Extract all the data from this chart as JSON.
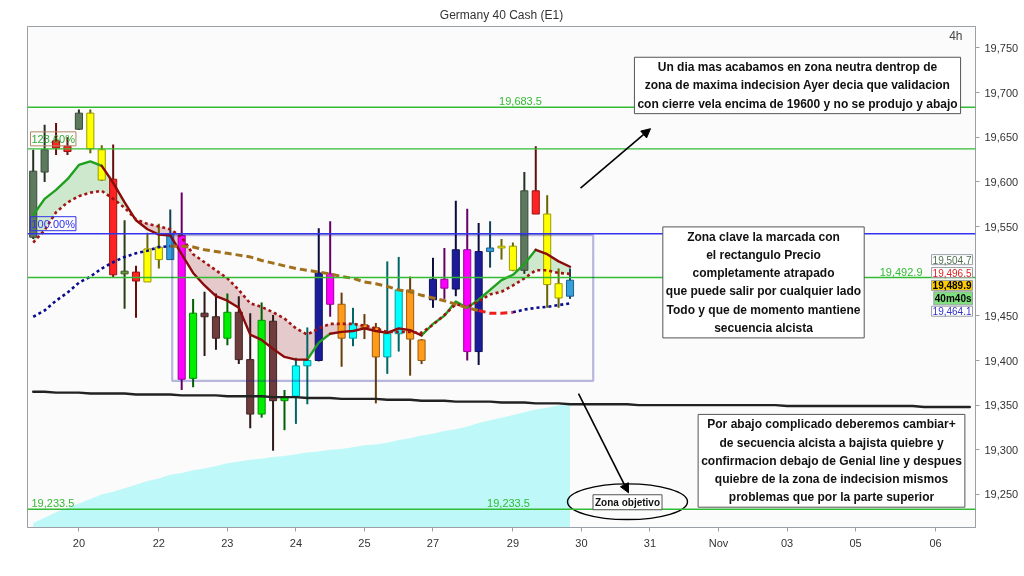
{
  "chart_data": {
    "type": "candlestick",
    "title": "Germany 40 Cash (E1)",
    "categories": [
      null,
      null,
      null,
      null,
      "20",
      null,
      null,
      null,
      null,
      null,
      null,
      "22",
      null,
      null,
      null,
      null,
      null,
      "23",
      null,
      null,
      null,
      null,
      null,
      "24",
      null,
      null,
      null,
      null,
      null,
      "25",
      null,
      null,
      null,
      null,
      null,
      "27",
      null,
      null,
      null,
      null,
      null,
      null,
      "29",
      null,
      null,
      null,
      null,
      null,
      "30",
      null,
      null,
      null,
      null,
      null,
      "31",
      null,
      null,
      null,
      null,
      null,
      "Nov",
      null,
      null,
      null,
      null,
      null,
      "03",
      null,
      null,
      null,
      null,
      null,
      "05",
      null,
      null,
      null,
      null,
      null,
      null,
      "06",
      null,
      null,
      null
    ],
    "ohlc": [
      [
        19538,
        19636,
        19536,
        19612
      ],
      [
        19611,
        19664,
        19600,
        19636
      ],
      [
        19646,
        19666,
        19630,
        19638
      ],
      [
        19640,
        19650,
        19630,
        19634
      ],
      [
        19659,
        19681,
        19658,
        19677
      ],
      [
        19677,
        19681,
        19632,
        19637
      ],
      [
        19636,
        19641,
        19601,
        19602
      ],
      [
        19603,
        19642,
        19493,
        19496
      ],
      [
        19497,
        19557,
        19458,
        19500
      ],
      [
        19499,
        19506,
        19448,
        19489
      ],
      [
        19525,
        19543,
        19488,
        19488
      ],
      [
        19527,
        19553,
        19503,
        19513
      ],
      [
        19513,
        19569,
        19513,
        19541
      ],
      [
        19540,
        19588,
        19367,
        19379
      ],
      [
        19380,
        19469,
        19370,
        19453
      ],
      [
        19453,
        19477,
        19405,
        19449
      ],
      [
        19449,
        19475,
        19412,
        19425
      ],
      [
        19425,
        19475,
        19417,
        19454
      ],
      [
        19454,
        19472,
        19396,
        19401
      ],
      [
        19401,
        19453,
        19324,
        19340
      ],
      [
        19340,
        19465,
        19336,
        19445
      ],
      [
        19444,
        19451,
        19299,
        19355
      ],
      [
        19355,
        19367,
        19322,
        19359
      ],
      [
        19360,
        19403,
        19329,
        19394
      ],
      [
        19394,
        19437,
        19351,
        19400
      ],
      [
        19400,
        19548,
        19399,
        19498
      ],
      [
        19497,
        19556,
        19449,
        19463
      ],
      [
        19463,
        19476,
        19393,
        19425
      ],
      [
        19425,
        19459,
        19416,
        19441
      ],
      [
        19440,
        19452,
        19424,
        19437
      ],
      [
        19437,
        19442,
        19352,
        19404
      ],
      [
        19404,
        19511,
        19385,
        19430
      ],
      [
        19430,
        19516,
        19410,
        19479
      ],
      [
        19479,
        19494,
        19383,
        19424
      ],
      [
        19423,
        19424,
        19396,
        19400
      ],
      [
        19468,
        19515,
        19459,
        19491
      ],
      [
        19491,
        19526,
        19469,
        19481
      ],
      [
        19480,
        19579,
        19472,
        19524
      ],
      [
        19524,
        19570,
        19400,
        19410
      ],
      [
        19410,
        19554,
        19395,
        19522
      ],
      [
        19522,
        19556,
        19504,
        19526
      ],
      [
        19528,
        19536,
        19513,
        19526
      ],
      [
        19528,
        19532,
        19500,
        19501
      ],
      [
        19501,
        19611,
        19497,
        19590
      ],
      [
        19590,
        19640,
        19564,
        19564
      ],
      [
        19564,
        19585,
        19459,
        19485
      ],
      [
        19486,
        19503,
        19459,
        19470
      ],
      [
        19472,
        19503,
        19469,
        19489.9
      ],
      null,
      null,
      null,
      null,
      null,
      null,
      null,
      null,
      null,
      null,
      null,
      null,
      null,
      null,
      null,
      null,
      null,
      null,
      null,
      null,
      null,
      null,
      null,
      null,
      null,
      null,
      null,
      null,
      null,
      null,
      null,
      null,
      null,
      null,
      null
    ],
    "colors": [
      "#5e7a5e",
      "#5e7a5e",
      "#ff2222",
      "#ff2222",
      "#5e7a5e",
      "#ffff00",
      "#ffff00",
      "#ff2222",
      "#6a9a3a",
      "#ff2222",
      "#ffff00",
      "#ffff00",
      "#33a0dd",
      "#ff00ff",
      "#00ee00",
      "#6e3c3c",
      "#6e3c3c",
      "#00ee00",
      "#6e3c3c",
      "#6e3c3c",
      "#00ee00",
      "#6e3c3c",
      "#00ee00",
      "#00ffff",
      "#00ffff",
      "#1c1c9a",
      "#ff00ff",
      "#ff9a1a",
      "#00ffff",
      "#ff9a1a",
      "#ff9a1a",
      "#00ffff",
      "#00ffff",
      "#ff9a1a",
      "#ff9a1a",
      "#1c1c9a",
      "#ff00ff",
      "#1c1c9a",
      "#ff00ff",
      "#1c1c9a",
      "#33a0dd",
      "#ffff00",
      "#ffff00",
      "#5e7a5e",
      "#ff2222",
      "#ffff00",
      "#ffff00",
      "#33a0dd",
      null,
      null,
      null,
      null,
      null,
      null,
      null,
      null,
      null,
      null,
      null,
      null,
      null,
      null,
      null,
      null,
      null,
      null,
      null,
      null,
      null,
      null,
      null,
      null,
      null,
      null,
      null,
      null,
      null,
      null,
      null,
      null,
      null,
      null,
      null
    ],
    "ylim": [
      19213,
      19774
    ],
    "yticks": [
      {
        "value": 19250,
        "label": "19,250"
      },
      {
        "value": 19300,
        "label": "19,300"
      },
      {
        "value": 19350,
        "label": "19,350"
      },
      {
        "value": 19400,
        "label": "19,400"
      },
      {
        "value": 19450,
        "label": "19,450"
      },
      {
        "value": 19550,
        "label": "19,550"
      },
      {
        "value": 19600,
        "label": "19,600"
      },
      {
        "value": 19650,
        "label": "19,650"
      },
      {
        "value": 19700,
        "label": "19,700"
      },
      {
        "value": 19750,
        "label": "19,750"
      }
    ],
    "series": [
      {
        "type": "area",
        "color": "#bff8f8",
        "values": [
          19218,
          19224,
          19230,
          19235,
          19240,
          19245,
          19250,
          19253,
          19257,
          19261,
          19265,
          19268,
          19272,
          19274,
          19277,
          19279,
          19282,
          19285,
          19287,
          19289,
          19290,
          19292,
          19293,
          19295,
          19297,
          19298,
          19300,
          19301,
          19303,
          19305,
          19306,
          19308,
          19311,
          19313,
          19316,
          19318,
          19321,
          19323,
          19326,
          19330,
          19333,
          19336,
          19339,
          19342,
          19345,
          19347,
          19350,
          19352,
          null,
          null,
          null,
          null,
          null,
          null,
          null,
          null,
          null,
          null,
          null,
          null,
          null,
          null,
          null,
          null,
          null,
          null,
          null,
          null,
          null,
          null,
          null,
          null,
          null,
          null,
          null,
          null,
          null,
          null,
          null,
          null,
          null,
          null,
          null
        ]
      },
      {
        "type": "line",
        "color": "#222222",
        "values": [
          19365,
          19365,
          19364,
          19364,
          19364,
          19363,
          19363,
          19363,
          19363,
          19362,
          19362,
          19362,
          19362,
          19361,
          19361,
          19361,
          19361,
          19360,
          19360,
          19360,
          19360,
          19359,
          19359,
          19359,
          19358,
          19358,
          19358,
          19357,
          19357,
          19357,
          19357,
          19356,
          19356,
          19356,
          19355,
          19355,
          19355,
          19354,
          19354,
          19354,
          19354,
          19353,
          19353,
          19353,
          19352,
          19352,
          19352,
          19351,
          19351,
          19351,
          19351,
          19351,
          19351,
          19350,
          19350,
          19350,
          19350,
          19350,
          19350,
          19350,
          19350,
          19350,
          19350,
          19350,
          19350,
          19350,
          19349,
          19349,
          19349,
          19349,
          19349,
          19349,
          19349,
          19349,
          19349,
          19349,
          19349,
          19349,
          19348,
          19348,
          19348,
          19348,
          19348
        ]
      },
      {
        "type": "line",
        "color": "#1ea01e",
        "values": [
          19563,
          19581,
          19591,
          19603,
          19619,
          19623,
          19618,
          null,
          null,
          null,
          null,
          null,
          null,
          null,
          null,
          null,
          null,
          null,
          null,
          null,
          null,
          null,
          null,
          null,
          19401,
          19420,
          19430,
          null,
          null,
          null,
          null,
          null,
          null,
          null,
          19428,
          19441,
          19450,
          19466,
          19459,
          19468,
          19479,
          19490,
          19496,
          19508,
          19524,
          null,
          null,
          null,
          null,
          null,
          null,
          null,
          null,
          null,
          null,
          null,
          null,
          null,
          null,
          null,
          null,
          null,
          null,
          null,
          null,
          null,
          null,
          null,
          null,
          null,
          null,
          null,
          null,
          null,
          null,
          null,
          null,
          null,
          null,
          null,
          null,
          null,
          null
        ],
        "lower": [
          19532,
          19546,
          19566,
          19577,
          19584,
          19588,
          19590,
          19581,
          19571,
          19557,
          null,
          null,
          null,
          null,
          null,
          null,
          null,
          null,
          null,
          null,
          null,
          null,
          null,
          null,
          null,
          null,
          null,
          null,
          null,
          null,
          null,
          null,
          null,
          null,
          19428,
          19440,
          19450,
          19463,
          19459,
          19466,
          19474,
          19477,
          19484,
          19492,
          19501,
          19501,
          19498,
          19497,
          null,
          null,
          null,
          null,
          null,
          null,
          null,
          null,
          null,
          null,
          null,
          null,
          null,
          null,
          null,
          null,
          null,
          null,
          null,
          null,
          null,
          null,
          null,
          null,
          null,
          null,
          null,
          null,
          null,
          null,
          null,
          null,
          null,
          null,
          null
        ],
        "upper": [
          19563,
          19581,
          19591,
          19603,
          19619,
          19623,
          19618,
          19599,
          19577,
          19558,
          null,
          null,
          null,
          null,
          null,
          null,
          null,
          null,
          null,
          null,
          null,
          null,
          null,
          null,
          null,
          null,
          null,
          null,
          null,
          null,
          null,
          null,
          null,
          null,
          19431,
          19441,
          19451,
          19466,
          19460,
          19468,
          19479,
          19490,
          19496,
          19508,
          19524,
          19519,
          19511,
          19505,
          null,
          null,
          null,
          null,
          null,
          null,
          null,
          null,
          null,
          null,
          null,
          null,
          null,
          null,
          null,
          null,
          null,
          null,
          null,
          null,
          null,
          null,
          null,
          null,
          null,
          null,
          null,
          null,
          null,
          null,
          null,
          null,
          null,
          null,
          null
        ]
      },
      {
        "type": "line",
        "color": "#8b0a0a",
        "values": [
          null,
          null,
          null,
          null,
          null,
          null,
          19618,
          19599,
          19577,
          19557,
          19547,
          19541,
          19540,
          19519,
          19498,
          19484,
          19472,
          19467,
          19459,
          19429,
          19423,
          19413,
          19404,
          19401,
          19401,
          null,
          19430,
          19432,
          19433,
          19436,
          19433,
          19431,
          19436,
          19434,
          19428,
          null,
          null,
          null,
          null,
          null,
          null,
          null,
          null,
          null,
          19524,
          19519,
          19511,
          19505,
          null,
          null,
          null,
          null,
          null,
          null,
          null,
          null,
          null,
          null,
          null,
          null,
          null,
          null,
          null,
          null,
          null,
          null,
          null,
          null,
          null,
          null,
          null,
          null,
          null,
          null,
          null,
          null,
          null,
          null,
          null,
          null,
          null,
          null,
          null
        ],
        "lower": [
          null,
          null,
          null,
          null,
          null,
          null,
          null,
          null,
          null,
          19557,
          19547,
          19541,
          19540,
          19519,
          19498,
          19484,
          19472,
          19467,
          19459,
          19429,
          19423,
          19413,
          19404,
          19401,
          19401,
          19420,
          19430,
          19432,
          19433,
          19436,
          19433,
          19431,
          19432,
          19432,
          19428,
          null,
          null,
          null,
          null,
          null,
          null,
          null,
          null,
          null,
          null,
          null,
          null,
          null,
          null,
          null,
          null,
          null,
          null,
          null,
          null,
          null,
          null,
          null,
          null,
          null,
          null,
          null,
          null,
          null,
          null,
          null,
          null,
          null,
          null,
          null,
          null,
          null,
          null,
          null,
          null,
          null,
          null,
          null,
          null,
          null,
          null,
          null,
          null
        ],
        "upper": [
          null,
          null,
          null,
          null,
          null,
          null,
          null,
          null,
          null,
          19558,
          19553,
          19550,
          19547,
          19538,
          19519,
          19510,
          19501,
          19492,
          19479,
          19464,
          19460,
          19454,
          19447,
          19436,
          19429,
          19436,
          19441,
          19441,
          19441,
          19439,
          19436,
          19432,
          19436,
          19434,
          19431,
          null,
          null,
          null,
          null,
          null,
          null,
          null,
          null,
          null,
          null,
          null,
          null,
          null,
          null,
          null,
          null,
          null,
          null,
          null,
          null,
          null,
          null,
          null,
          null,
          null,
          null,
          null,
          null,
          null,
          null,
          null,
          null,
          null,
          null,
          null,
          null,
          null,
          null,
          null,
          null,
          null,
          null,
          null,
          null,
          null,
          null,
          null,
          null
        ]
      },
      {
        "type": "line",
        "color": "#a01414",
        "line_style": "dotted",
        "values": [
          19532,
          19546,
          19566,
          19577,
          19584,
          19588,
          19590,
          19581,
          19571,
          19558,
          19553,
          19550,
          19547,
          19538,
          19519,
          19510,
          19501,
          19492,
          19479,
          19464,
          19460,
          19454,
          19447,
          19436,
          19429,
          19436,
          19441,
          19441,
          19441,
          19439,
          19436,
          19432,
          19432,
          19432,
          19431,
          19440,
          19451,
          19463,
          19460,
          19466,
          19474,
          19477,
          19484,
          19492,
          19501,
          19501,
          19498,
          19497,
          null,
          null,
          null,
          null,
          null,
          null,
          null,
          null,
          null,
          null,
          null,
          null,
          null,
          null,
          null,
          null,
          null,
          null,
          null,
          null,
          null,
          null,
          null,
          null,
          null,
          null,
          null,
          null,
          null,
          null,
          null,
          null,
          null,
          null,
          null
        ]
      },
      {
        "type": "line",
        "color": "#0b0b8f",
        "line_style": "dotted",
        "values": [
          19449,
          19456,
          19467,
          19476,
          19487,
          19494,
          19503,
          19510,
          19516,
          19520,
          19523,
          19527,
          19528,
          null,
          null,
          null,
          null,
          null,
          null,
          null,
          null,
          null,
          null,
          null,
          null,
          null,
          null,
          null,
          null,
          null,
          null,
          null,
          null,
          null,
          null,
          null,
          null,
          null,
          null,
          null,
          null,
          null,
          19454,
          19457,
          19459,
          19460,
          19462,
          19464,
          null,
          null,
          null,
          null,
          null,
          null,
          null,
          null,
          null,
          null,
          null,
          null,
          null,
          null,
          null,
          null,
          null,
          null,
          null,
          null,
          null,
          null,
          null,
          null,
          null,
          null,
          null,
          null,
          null,
          null,
          null,
          null,
          null,
          null,
          null
        ]
      },
      {
        "type": "line",
        "color": "#a0701a",
        "line_style": "dashed",
        "values": [
          null,
          null,
          null,
          null,
          null,
          null,
          null,
          null,
          null,
          null,
          null,
          null,
          19528,
          19528,
          19527,
          19524,
          19522,
          19520,
          19518,
          19516,
          19512,
          19509,
          19506,
          19503,
          19501,
          19499,
          19497,
          19494,
          19492,
          19488,
          19486,
          19483,
          19479,
          19477,
          19473,
          19470,
          19467,
          19463,
          19459,
          19456,
          null,
          null,
          null,
          null,
          null,
          null,
          null,
          null,
          null,
          null,
          null,
          null,
          null,
          null,
          null,
          null,
          null,
          null,
          null,
          null,
          null,
          null,
          null,
          null,
          null,
          null,
          null,
          null,
          null,
          null,
          null,
          null,
          null,
          null,
          null,
          null,
          null,
          null,
          null,
          null,
          null,
          null,
          null
        ]
      },
      {
        "type": "line",
        "color": "#ee1c1c",
        "line_style": "dashed",
        "values": [
          null,
          null,
          null,
          null,
          null,
          null,
          null,
          null,
          null,
          null,
          null,
          null,
          null,
          null,
          null,
          null,
          null,
          null,
          null,
          null,
          null,
          null,
          null,
          null,
          null,
          null,
          null,
          null,
          null,
          null,
          null,
          null,
          null,
          null,
          null,
          null,
          null,
          null,
          null,
          19456,
          19453,
          19453,
          19454,
          null,
          null,
          null,
          null,
          null,
          null,
          null,
          null,
          null,
          null,
          null,
          null,
          null,
          null,
          null,
          null,
          null,
          null,
          null,
          null,
          null,
          null,
          null,
          null,
          null,
          null,
          null,
          null,
          null,
          null,
          null,
          null,
          null,
          null,
          null,
          null,
          null,
          null,
          null,
          null
        ]
      }
    ],
    "ref_lines": [
      {
        "axis": "y",
        "value": 19683.5,
        "label": "19,683.5",
        "color": "#33bb33"
      },
      {
        "axis": "y",
        "value": 19637,
        "color": "#33bb33"
      },
      {
        "axis": "y",
        "value": 19542,
        "color": "#3333ee"
      },
      {
        "axis": "y",
        "value": 19492.9,
        "label": "19,492.9",
        "color": "#33bb33"
      },
      {
        "axis": "y",
        "value": 19233.5,
        "label": "19,233.5",
        "color": "#33bb33"
      }
    ],
    "annotations": [
      "Un dia mas acabamos en zona neutra dentrop de\nzona de maxima indecision Ayer decia que validacion\ncon cierre vela encima de 19600 y no se produjo y abajo",
      "Zona clave la marcada con\nel rectangulo Precio\ncompletamente atrapado\nque puede salir por cualquier lado\nTodo y que de momento mantiene\nsecuencia alcista",
      "Por abajo complicado deberemos cambiar+\nde secuencia alcista a bajista quiebre y\nconfirmacion debajo de Genial line y despues\nquiebre de la zona de indecision mismos\nproblemas que por la parte superior",
      "Zona objetivo",
      "4h",
      {
        "text": "123.60%",
        "y": 19637
      },
      {
        "text": "100.00%",
        "y": 19542
      },
      {
        "text": "19,233.5",
        "y": 19233.5
      },
      "19,504.7",
      "19,496.5",
      "19,489.9",
      "40m40s",
      "19,464.1"
    ]
  }
}
